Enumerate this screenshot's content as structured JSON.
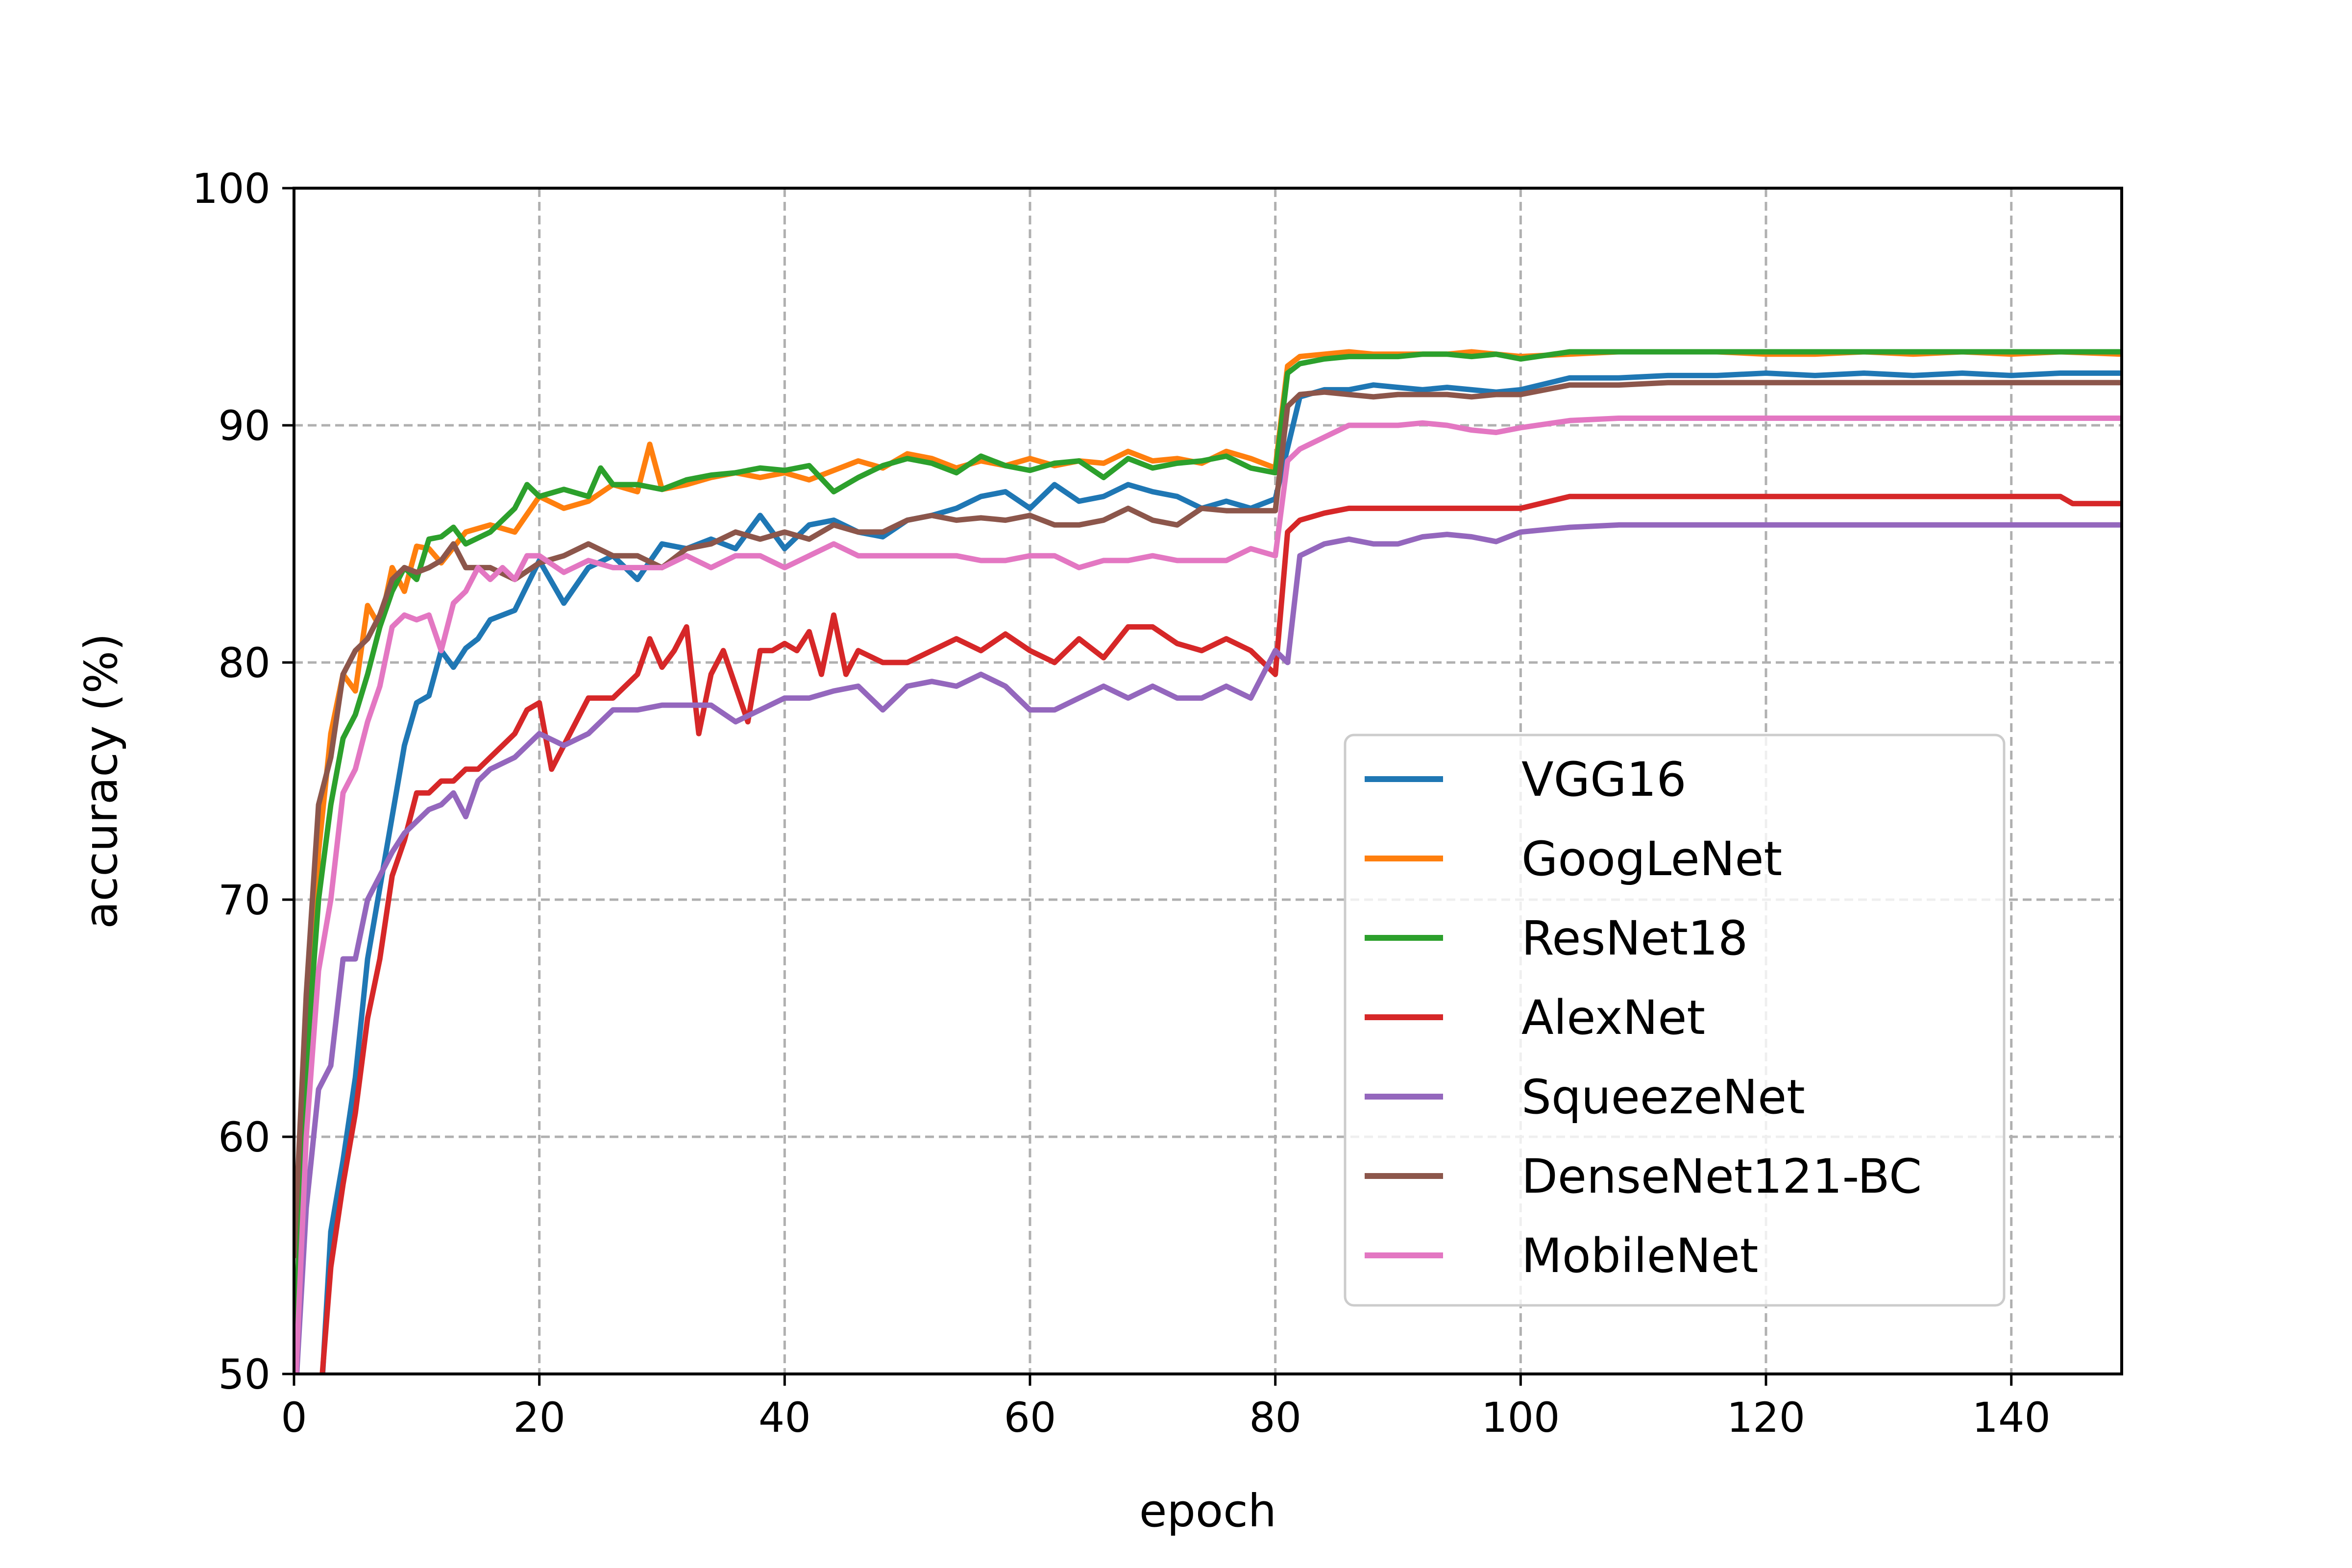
{
  "chart_data": {
    "type": "line",
    "title": "",
    "xlabel": "epoch",
    "ylabel": "accuracy (%)",
    "xlim": [
      0,
      149
    ],
    "ylim": [
      50,
      100
    ],
    "xticks": [
      0,
      20,
      40,
      60,
      80,
      100,
      120,
      140
    ],
    "yticks": [
      50,
      60,
      70,
      80,
      90,
      100
    ],
    "grid": true,
    "legend_position": "lower-right",
    "series": [
      {
        "name": "VGG16",
        "color": "#1f77b4",
        "x": [
          0,
          2,
          3,
          4,
          5,
          6,
          7,
          8,
          9,
          10,
          11,
          12,
          13,
          14,
          15,
          16,
          18,
          20,
          22,
          24,
          26,
          28,
          30,
          32,
          34,
          36,
          38,
          40,
          42,
          44,
          46,
          48,
          50,
          52,
          54,
          56,
          58,
          60,
          62,
          64,
          66,
          68,
          70,
          72,
          74,
          76,
          78,
          80,
          82,
          84,
          86,
          88,
          90,
          92,
          94,
          96,
          98,
          100,
          104,
          108,
          112,
          116,
          120,
          124,
          128,
          132,
          136,
          140,
          144,
          149
        ],
        "y": [
          45,
          47,
          56,
          59,
          62.5,
          67.5,
          70.5,
          73.5,
          76.5,
          78.3,
          78.6,
          80.5,
          79.8,
          80.6,
          81,
          81.8,
          82.2,
          84.3,
          82.5,
          84,
          84.5,
          83.5,
          85,
          84.8,
          85.2,
          84.8,
          86.2,
          84.8,
          85.8,
          86,
          85.5,
          85.3,
          86,
          86.2,
          86.5,
          87,
          87.2,
          86.5,
          87.5,
          86.8,
          87,
          87.5,
          87.2,
          87,
          86.5,
          86.8,
          86.5,
          86.9,
          91.2,
          91.5,
          91.5,
          91.7,
          91.6,
          91.5,
          91.6,
          91.5,
          91.4,
          91.5,
          92,
          92,
          92.1,
          92.1,
          92.2,
          92.1,
          92.2,
          92.1,
          92.2,
          92.1,
          92.2,
          92.2
        ]
      },
      {
        "name": "GoogLeNet",
        "color": "#ff7f0e",
        "x": [
          0,
          1,
          2,
          3,
          4,
          5,
          6,
          7,
          8,
          9,
          10,
          11,
          12,
          14,
          16,
          18,
          20,
          22,
          24,
          26,
          28,
          29,
          30,
          32,
          34,
          36,
          38,
          40,
          42,
          44,
          46,
          48,
          50,
          52,
          54,
          56,
          58,
          60,
          62,
          64,
          66,
          68,
          70,
          72,
          74,
          76,
          78,
          80,
          81,
          82,
          84,
          86,
          88,
          90,
          92,
          94,
          96,
          98,
          100,
          104,
          108,
          112,
          116,
          120,
          124,
          128,
          132,
          136,
          140,
          144,
          149
        ],
        "y": [
          50,
          63,
          72,
          77,
          79.5,
          78.8,
          82.4,
          81.5,
          84,
          83,
          84.9,
          84.8,
          84.2,
          85.5,
          85.8,
          85.5,
          87,
          86.5,
          86.8,
          87.5,
          87.2,
          89.2,
          87.3,
          87.5,
          87.8,
          88,
          87.8,
          88,
          87.7,
          88.1,
          88.5,
          88.2,
          88.8,
          88.6,
          88.2,
          88.5,
          88.3,
          88.6,
          88.3,
          88.5,
          88.4,
          88.9,
          88.5,
          88.6,
          88.4,
          88.9,
          88.6,
          88.2,
          92.5,
          92.9,
          93,
          93.1,
          93,
          93,
          93,
          93,
          93.1,
          93,
          92.9,
          93,
          93.1,
          93.1,
          93.1,
          93,
          93,
          93.1,
          93,
          93.1,
          93,
          93.1,
          93
        ]
      },
      {
        "name": "ResNet18",
        "color": "#2ca02c",
        "x": [
          0,
          1,
          2,
          3,
          4,
          5,
          6,
          7,
          8,
          9,
          10,
          11,
          12,
          13,
          14,
          16,
          18,
          19,
          20,
          22,
          24,
          25,
          26,
          28,
          30,
          32,
          34,
          36,
          38,
          40,
          42,
          44,
          46,
          48,
          50,
          52,
          54,
          56,
          58,
          60,
          62,
          64,
          66,
          68,
          70,
          72,
          74,
          76,
          78,
          80,
          81,
          82,
          84,
          86,
          88,
          90,
          92,
          94,
          96,
          98,
          100,
          104,
          108,
          112,
          116,
          120,
          124,
          128,
          132,
          136,
          140,
          144,
          149
        ],
        "y": [
          50,
          63,
          70,
          74,
          76.8,
          77.8,
          79.5,
          81.5,
          83,
          84,
          83.5,
          85.2,
          85.3,
          85.7,
          85,
          85.5,
          86.5,
          87.5,
          87,
          87.3,
          87,
          88.2,
          87.5,
          87.5,
          87.3,
          87.7,
          87.9,
          88,
          88.2,
          88.1,
          88.3,
          87.2,
          87.8,
          88.3,
          88.6,
          88.4,
          88,
          88.7,
          88.3,
          88.1,
          88.4,
          88.5,
          87.8,
          88.6,
          88.2,
          88.4,
          88.5,
          88.7,
          88.2,
          88,
          92.2,
          92.6,
          92.8,
          92.9,
          92.9,
          92.9,
          93,
          93,
          92.9,
          93,
          92.8,
          93.1,
          93.1,
          93.1,
          93.1,
          93.1,
          93.1,
          93.1,
          93.1,
          93.1,
          93.1,
          93.1,
          93.1
        ]
      },
      {
        "name": "AlexNet",
        "color": "#d62728",
        "x": [
          0,
          2,
          3,
          4,
          5,
          6,
          7,
          8,
          9,
          10,
          11,
          12,
          13,
          14,
          15,
          16,
          17,
          18,
          19,
          20,
          21,
          22,
          24,
          26,
          28,
          29,
          30,
          31,
          32,
          33,
          34,
          35,
          36,
          37,
          38,
          39,
          40,
          41,
          42,
          43,
          44,
          45,
          46,
          48,
          50,
          52,
          54,
          56,
          58,
          60,
          62,
          64,
          66,
          68,
          70,
          72,
          74,
          76,
          78,
          80,
          81,
          82,
          84,
          86,
          88,
          90,
          92,
          94,
          96,
          98,
          100,
          104,
          108,
          112,
          116,
          120,
          124,
          128,
          132,
          136,
          140,
          144,
          145,
          149
        ],
        "y": [
          45,
          48,
          54.5,
          58,
          61,
          65,
          67.5,
          71,
          72.5,
          74.5,
          74.5,
          75,
          75,
          75.5,
          75.5,
          76,
          76.5,
          77,
          78,
          78.3,
          75.5,
          76.5,
          78.5,
          78.5,
          79.5,
          81,
          79.8,
          80.5,
          81.5,
          77,
          79.5,
          80.5,
          79,
          77.5,
          80.5,
          80.5,
          80.8,
          80.5,
          81.3,
          79.5,
          82,
          79.5,
          80.5,
          80,
          80,
          80.5,
          81,
          80.5,
          81.2,
          80.5,
          80,
          81,
          80.2,
          81.5,
          81.5,
          80.8,
          80.5,
          81,
          80.5,
          79.5,
          85.5,
          86,
          86.3,
          86.5,
          86.5,
          86.5,
          86.5,
          86.5,
          86.5,
          86.5,
          86.5,
          87,
          87,
          87,
          87,
          87,
          87,
          87,
          87,
          87,
          87,
          87,
          86.7,
          86.7
        ]
      },
      {
        "name": "SqueezeNet",
        "color": "#9467bd",
        "x": [
          0,
          1,
          2,
          3,
          4,
          5,
          6,
          7,
          8,
          9,
          10,
          11,
          12,
          13,
          14,
          15,
          16,
          18,
          20,
          22,
          24,
          26,
          28,
          30,
          32,
          34,
          36,
          38,
          40,
          42,
          44,
          46,
          48,
          50,
          52,
          54,
          56,
          58,
          60,
          62,
          64,
          66,
          68,
          70,
          72,
          74,
          76,
          78,
          80,
          81,
          82,
          84,
          86,
          88,
          90,
          92,
          94,
          96,
          98,
          100,
          104,
          108,
          112,
          116,
          120,
          124,
          128,
          132,
          136,
          140,
          144,
          149
        ],
        "y": [
          48,
          57,
          62,
          63,
          67.5,
          67.5,
          70,
          71,
          72,
          72.8,
          73.3,
          73.8,
          74,
          74.5,
          73.5,
          75,
          75.5,
          76,
          77,
          76.5,
          77,
          78,
          78,
          78.2,
          78.2,
          78.2,
          77.5,
          78,
          78.5,
          78.5,
          78.8,
          79,
          78,
          79,
          79.2,
          79,
          79.5,
          79,
          78,
          78,
          78.5,
          79,
          78.5,
          79,
          78.5,
          78.5,
          79,
          78.5,
          80.5,
          80,
          84.5,
          85,
          85.2,
          85,
          85,
          85.3,
          85.4,
          85.3,
          85.1,
          85.5,
          85.7,
          85.8,
          85.8,
          85.8,
          85.8,
          85.8,
          85.8,
          85.8,
          85.8,
          85.8,
          85.8,
          85.8
        ]
      },
      {
        "name": "DenseNet121-BC",
        "color": "#8c564b",
        "x": [
          0,
          1,
          2,
          3,
          4,
          5,
          6,
          7,
          8,
          9,
          10,
          11,
          12,
          13,
          14,
          16,
          18,
          20,
          22,
          24,
          26,
          28,
          30,
          32,
          34,
          36,
          38,
          40,
          42,
          44,
          46,
          48,
          50,
          52,
          54,
          56,
          58,
          60,
          62,
          64,
          66,
          68,
          70,
          72,
          74,
          76,
          78,
          80,
          81,
          82,
          84,
          86,
          88,
          90,
          92,
          94,
          96,
          98,
          100,
          104,
          108,
          112,
          116,
          120,
          124,
          128,
          132,
          136,
          140,
          144,
          149
        ],
        "y": [
          55,
          66,
          74,
          76,
          79.5,
          80.5,
          81,
          82,
          83.5,
          84,
          83.8,
          84,
          84.3,
          85,
          84,
          84,
          83.5,
          84.2,
          84.5,
          85,
          84.5,
          84.5,
          84,
          84.8,
          85,
          85.5,
          85.2,
          85.5,
          85.2,
          85.8,
          85.5,
          85.5,
          86,
          86.2,
          86,
          86.1,
          86,
          86.2,
          85.8,
          85.8,
          86,
          86.5,
          86,
          85.8,
          86.5,
          86.4,
          86.4,
          86.4,
          90.8,
          91.3,
          91.4,
          91.3,
          91.2,
          91.3,
          91.3,
          91.3,
          91.2,
          91.3,
          91.3,
          91.7,
          91.7,
          91.8,
          91.8,
          91.8,
          91.8,
          91.8,
          91.8,
          91.8,
          91.8,
          91.8,
          91.8
        ]
      },
      {
        "name": "MobileNet",
        "color": "#e377c2",
        "x": [
          0,
          1,
          2,
          3,
          4,
          5,
          6,
          7,
          8,
          9,
          10,
          11,
          12,
          13,
          14,
          15,
          16,
          17,
          18,
          19,
          20,
          22,
          24,
          26,
          28,
          30,
          32,
          34,
          36,
          38,
          40,
          42,
          44,
          46,
          48,
          50,
          52,
          54,
          56,
          58,
          60,
          62,
          64,
          66,
          68,
          70,
          72,
          74,
          76,
          78,
          80,
          81,
          82,
          84,
          86,
          88,
          90,
          92,
          94,
          96,
          98,
          100,
          104,
          108,
          112,
          116,
          120,
          124,
          128,
          132,
          136,
          140,
          144,
          149
        ],
        "y": [
          48,
          60,
          67,
          70,
          74.5,
          75.5,
          77.5,
          79,
          81.5,
          82,
          81.8,
          82,
          80.5,
          82.5,
          83,
          84,
          83.5,
          84,
          83.5,
          84.5,
          84.5,
          83.8,
          84.3,
          84,
          84,
          84,
          84.5,
          84,
          84.5,
          84.5,
          84,
          84.5,
          85,
          84.5,
          84.5,
          84.5,
          84.5,
          84.5,
          84.3,
          84.3,
          84.5,
          84.5,
          84,
          84.3,
          84.3,
          84.5,
          84.3,
          84.3,
          84.3,
          84.8,
          84.5,
          88.5,
          89,
          89.5,
          90,
          90,
          90,
          90.1,
          90,
          89.8,
          89.7,
          89.9,
          90.2,
          90.3,
          90.3,
          90.3,
          90.3,
          90.3,
          90.3,
          90.3,
          90.3,
          90.3,
          90.3,
          90.3
        ]
      }
    ]
  }
}
